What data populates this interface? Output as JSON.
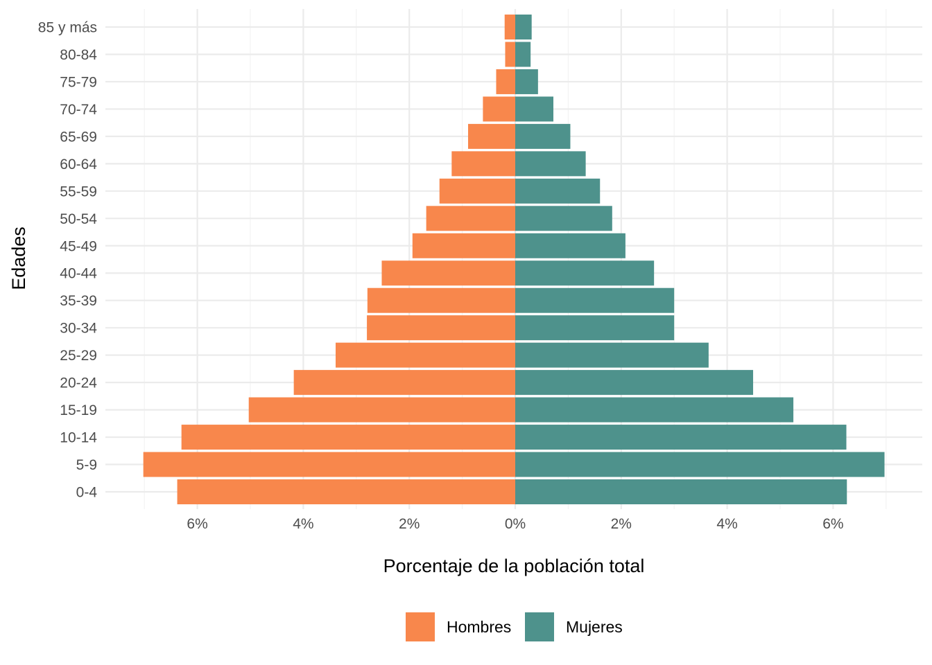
{
  "chart_data": {
    "type": "bar",
    "orientation": "horizontal",
    "layout": "population-pyramid",
    "xlabel": "Porcentaje de la población total",
    "ylabel": "Edades",
    "xlim": [
      -7,
      7
    ],
    "x_ticks": [
      -6,
      -4,
      -2,
      0,
      2,
      4,
      6
    ],
    "x_tick_labels": [
      "6%",
      "4%",
      "2%",
      "0%",
      "2%",
      "4%",
      "6%"
    ],
    "grid": true,
    "legend_position": "bottom",
    "categories": [
      "0-4",
      "5-9",
      "10-14",
      "15-19",
      "20-24",
      "25-29",
      "30-34",
      "35-39",
      "40-44",
      "45-49",
      "50-54",
      "55-59",
      "60-64",
      "65-69",
      "70-74",
      "75-79",
      "80-84",
      "85 y más"
    ],
    "series": [
      {
        "name": "Hombres",
        "color": "#F8874C",
        "side": "left",
        "values": [
          6.38,
          7.02,
          6.3,
          5.03,
          4.18,
          3.39,
          2.8,
          2.79,
          2.52,
          1.94,
          1.68,
          1.43,
          1.2,
          0.89,
          0.61,
          0.36,
          0.19,
          0.2
        ]
      },
      {
        "name": "Mujeres",
        "color": "#4E928C",
        "side": "right",
        "values": [
          6.26,
          6.97,
          6.25,
          5.25,
          4.49,
          3.65,
          3.0,
          3.0,
          2.62,
          2.08,
          1.83,
          1.6,
          1.33,
          1.04,
          0.72,
          0.43,
          0.29,
          0.31
        ]
      }
    ]
  }
}
